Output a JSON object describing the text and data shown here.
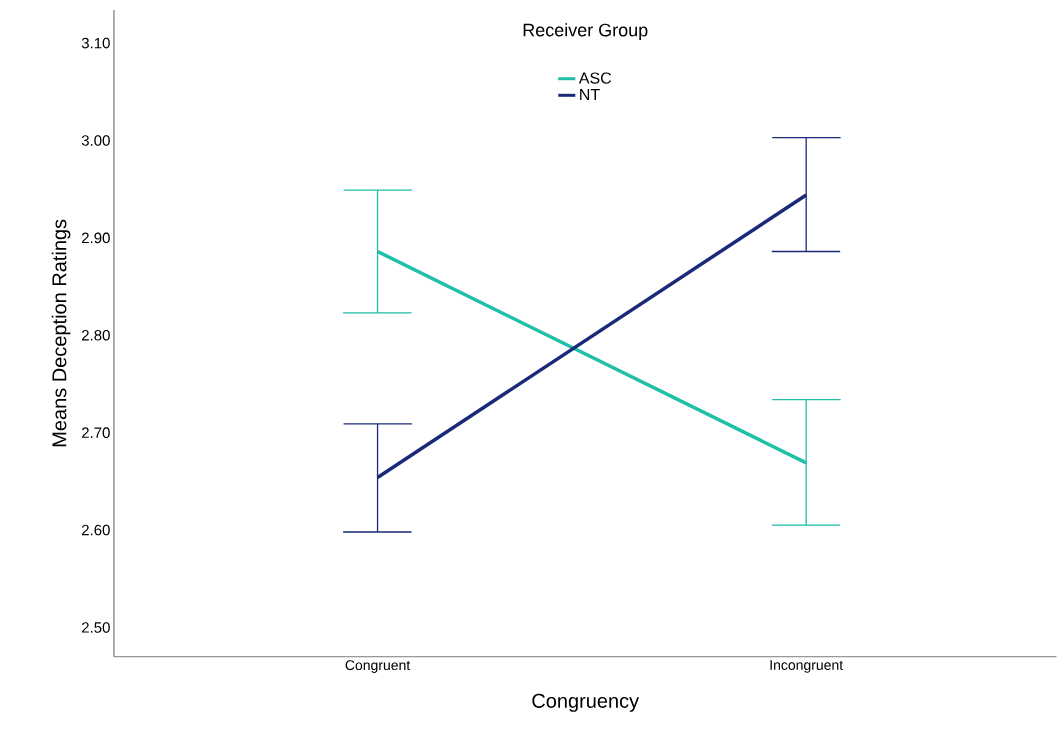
{
  "chart_data": {
    "type": "line",
    "xlabel": "Congruency",
    "ylabel": "Means Deception Ratings",
    "legend_title": "Receiver Group",
    "categories": [
      "Congruent",
      "Incongruent"
    ],
    "series": [
      {
        "name": "ASC",
        "color": "#1fbfa8",
        "values": [
          2.886,
          2.669
        ],
        "errors": [
          [
            2.823,
            2.949
          ],
          [
            2.605,
            2.734
          ]
        ]
      },
      {
        "name": "NT",
        "color": "#1a2a78",
        "values": [
          2.654,
          2.944
        ],
        "errors": [
          [
            2.598,
            2.709
          ],
          [
            2.886,
            3.003
          ]
        ]
      }
    ],
    "ylim": [
      2.47,
      3.134
    ],
    "yticks": [
      {
        "value": 2.5,
        "label": "2.50"
      },
      {
        "value": 2.6,
        "label": "2.60"
      },
      {
        "value": 2.7,
        "label": "2.70"
      },
      {
        "value": 2.8,
        "label": "2.80"
      },
      {
        "value": 2.9,
        "label": "2.90"
      },
      {
        "value": 3.0,
        "label": "3.00"
      },
      {
        "value": 3.1,
        "label": "3.10"
      }
    ],
    "legend": "top",
    "marker": "none",
    "line_style": "solid",
    "grid": false
  }
}
